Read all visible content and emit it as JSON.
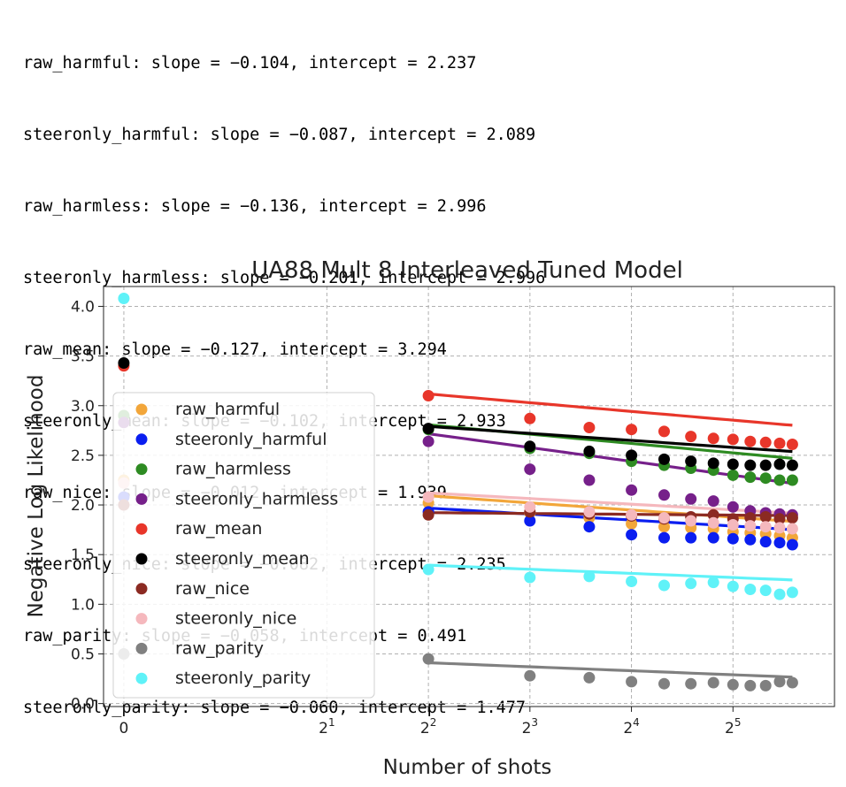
{
  "printout": [
    "raw_harmful: slope = −0.104, intercept = 2.237",
    "steeronly_harmful: slope = −0.087, intercept = 2.089",
    "raw_harmless: slope = −0.136, intercept = 2.996",
    "steeronly_harmless: slope = −0.201, intercept = 2.996",
    "raw_mean: slope = −0.127, intercept = 3.294",
    "steeronly_mean: slope = −0.102, intercept = 2.933",
    "raw_nice: slope = −0.012, intercept = 1.939",
    "steeronly_nice: slope = −0.082, intercept = 2.235",
    "raw_parity: slope = −0.058, intercept = 0.491",
    "steeronly_parity: slope = −0.060, intercept = 1.477"
  ],
  "chart_data": {
    "type": "scatter",
    "title": "UA88 Mult 8 Interleaved Tuned Model",
    "xlabel": "Number of shots",
    "ylabel": "Negative Log Likelihood",
    "x_scale": "symlog base 2",
    "xlim": [
      -0.2,
      64
    ],
    "ylim": [
      -0.03,
      4.2
    ],
    "grid": true,
    "legend_position": "center-left",
    "x_ticks": [
      {
        "value": 0,
        "base": "0",
        "exp": ""
      },
      {
        "value": 2,
        "base": "2",
        "exp": "1"
      },
      {
        "value": 4,
        "base": "2",
        "exp": "2"
      },
      {
        "value": 8,
        "base": "2",
        "exp": "3"
      },
      {
        "value": 16,
        "base": "2",
        "exp": "4"
      },
      {
        "value": 32,
        "base": "2",
        "exp": "5"
      }
    ],
    "y_ticks": [
      "0.0",
      "0.5",
      "1.0",
      "1.5",
      "2.0",
      "2.5",
      "3.0",
      "3.5",
      "4.0"
    ],
    "x": [
      0,
      4,
      8,
      12,
      16,
      20,
      24,
      28,
      32,
      36,
      40,
      44,
      48
    ],
    "series": [
      {
        "name": "raw_harmful",
        "color": "#f2a63a",
        "slope": -0.104,
        "intercept": 2.237,
        "values": [
          2.25,
          2.02,
          1.92,
          1.87,
          1.81,
          1.78,
          1.77,
          1.76,
          1.73,
          1.72,
          1.71,
          1.69,
          1.67
        ]
      },
      {
        "name": "steeronly_harmful",
        "color": "#0a1ef0",
        "slope": -0.087,
        "intercept": 2.089,
        "values": [
          2.08,
          1.93,
          1.84,
          1.78,
          1.7,
          1.67,
          1.67,
          1.67,
          1.66,
          1.65,
          1.63,
          1.62,
          1.6
        ]
      },
      {
        "name": "raw_harmless",
        "color": "#2e8b22",
        "slope": -0.136,
        "intercept": 2.996,
        "values": [
          2.9,
          2.76,
          2.57,
          2.52,
          2.44,
          2.4,
          2.37,
          2.35,
          2.3,
          2.28,
          2.27,
          2.25,
          2.25
        ]
      },
      {
        "name": "steeronly_harmless",
        "color": "#76208a",
        "slope": -0.201,
        "intercept": 2.996,
        "values": [
          2.83,
          2.64,
          2.36,
          2.25,
          2.15,
          2.1,
          2.06,
          2.04,
          1.98,
          1.94,
          1.92,
          1.91,
          1.9
        ]
      },
      {
        "name": "raw_mean",
        "color": "#e8362a",
        "slope": -0.127,
        "intercept": 3.294,
        "values": [
          3.4,
          3.1,
          2.87,
          2.78,
          2.76,
          2.74,
          2.69,
          2.67,
          2.66,
          2.64,
          2.63,
          2.62,
          2.61
        ]
      },
      {
        "name": "steeronly_mean",
        "color": "#000000",
        "slope": -0.102,
        "intercept": 2.933,
        "values": [
          3.43,
          2.77,
          2.59,
          2.54,
          2.5,
          2.46,
          2.44,
          2.42,
          2.41,
          2.4,
          2.4,
          2.41,
          2.4
        ]
      },
      {
        "name": "raw_nice",
        "color": "#8b2a22",
        "slope": -0.012,
        "intercept": 1.939,
        "values": [
          2.0,
          1.9,
          1.93,
          1.91,
          1.89,
          1.86,
          1.88,
          1.9,
          1.86,
          1.87,
          1.88,
          1.86,
          1.87
        ]
      },
      {
        "name": "steeronly_nice",
        "color": "#f5b8bd",
        "slope": -0.082,
        "intercept": 2.235,
        "values": [
          2.22,
          2.08,
          1.98,
          1.93,
          1.9,
          1.87,
          1.84,
          1.82,
          1.8,
          1.79,
          1.78,
          1.77,
          1.76
        ]
      },
      {
        "name": "raw_parity",
        "color": "#808080",
        "slope": -0.058,
        "intercept": 0.491,
        "values": [
          0.5,
          0.45,
          0.28,
          0.26,
          0.22,
          0.2,
          0.2,
          0.21,
          0.19,
          0.18,
          0.18,
          0.22,
          0.21
        ]
      },
      {
        "name": "steeronly_parity",
        "color": "#5ff2f8",
        "slope": -0.06,
        "intercept": 1.477,
        "values": [
          4.08,
          1.35,
          1.27,
          1.28,
          1.23,
          1.19,
          1.21,
          1.22,
          1.18,
          1.15,
          1.14,
          1.1,
          1.12
        ]
      }
    ]
  }
}
